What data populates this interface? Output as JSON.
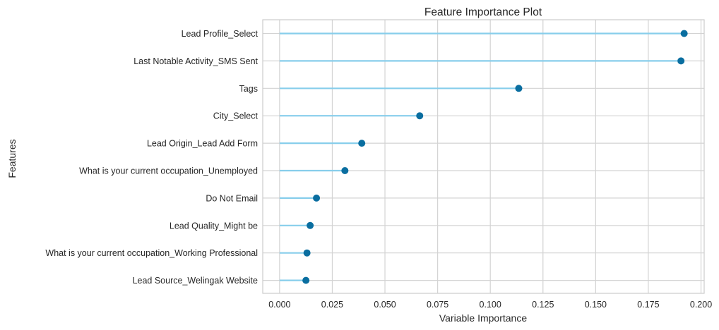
{
  "chart_data": {
    "type": "lollipop",
    "title": "Feature Importance Plot",
    "xlabel": "Variable Importance",
    "ylabel": "Features",
    "xlim": [
      -0.008,
      0.2015
    ],
    "xticks": [
      0.0,
      0.025,
      0.05,
      0.075,
      0.1,
      0.125,
      0.15,
      0.175,
      0.2
    ],
    "xtick_labels": [
      "0.000",
      "0.025",
      "0.050",
      "0.075",
      "0.100",
      "0.125",
      "0.150",
      "0.175",
      "0.200"
    ],
    "grid": true,
    "categories": [
      "Lead Profile_Select",
      "Last Notable Activity_SMS Sent",
      "Tags",
      "City_Select",
      "Lead Origin_Lead Add Form",
      "What is your current occupation_Unemployed",
      "Do Not Email",
      "Lead Quality_Might be",
      "What is your current occupation_Working Professional",
      "Lead Source_Welingak Website"
    ],
    "values": [
      0.192,
      0.1905,
      0.1135,
      0.0665,
      0.039,
      0.031,
      0.0175,
      0.0145,
      0.013,
      0.0125
    ],
    "colors": {
      "stem": "#87ceeb",
      "marker": "#0a6ea0",
      "grid": "#d3d3d3",
      "frame": "#cccccc",
      "text": "#262626"
    }
  }
}
